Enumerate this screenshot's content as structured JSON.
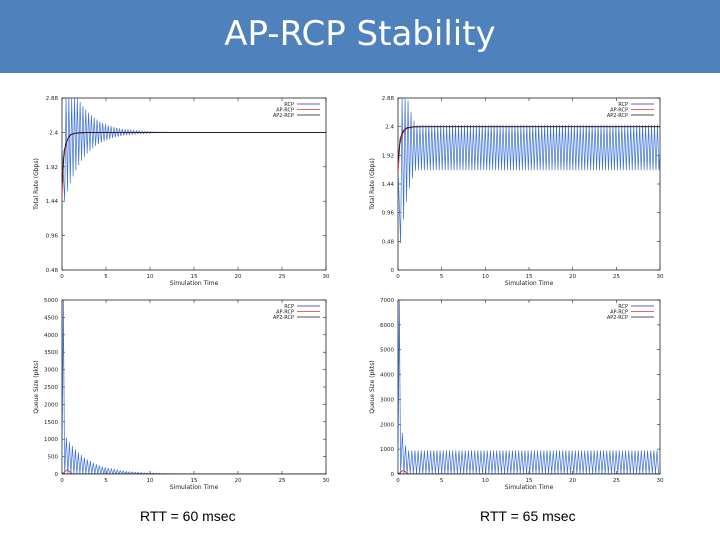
{
  "slide": {
    "title": "AP-RCP Stability"
  },
  "captions": {
    "left": "RTT = 60  msec",
    "right": "RTT = 65  msec"
  },
  "colors": {
    "title_bar": "#4f81bd",
    "rcp": "#2a2f9c",
    "ap_rcp": "#e03030",
    "ap2_rcp": "#1a1a1a",
    "oscillation": "#3a6fd8"
  },
  "chart_data": [
    {
      "id": "rate-60",
      "type": "line",
      "title": "",
      "xlabel": "Simulation Time",
      "ylabel": "Total Rate (Gbps)",
      "xlim": [
        0,
        30
      ],
      "ylim": [
        0.48,
        2.88
      ],
      "xticks": [
        "0",
        "5",
        "10",
        "15",
        "20",
        "25",
        "30"
      ],
      "yticks": [
        {
          "value": 0.48,
          "label": "0.48"
        },
        {
          "value": 0.96,
          "label": "0.96"
        },
        {
          "value": 1.44,
          "label": "1.44"
        },
        {
          "value": 1.92,
          "label": "1.92"
        },
        {
          "value": 2.4,
          "label": "2.4"
        },
        {
          "value": 2.88,
          "label": "2.88"
        }
      ],
      "legend": [
        "RCP",
        "AP-RCP",
        "AP2-RCP"
      ],
      "series": [
        {
          "name": "RCP",
          "kind": "damped-oscillation",
          "start": 0.3,
          "center": 2.4,
          "amplitude": 0.95,
          "period": 0.32,
          "decay": 2.2,
          "tail_amplitude": 0,
          "end": 30
        },
        {
          "name": "AP-RCP",
          "x": [
            0,
            0.2,
            0.5,
            0.8,
            1.2,
            2,
            30
          ],
          "y": [
            1.5,
            2.05,
            2.25,
            2.35,
            2.38,
            2.4,
            2.4
          ]
        },
        {
          "name": "AP2-RCP",
          "x": [
            0,
            0.25,
            0.6,
            1.0,
            1.6,
            3,
            30
          ],
          "y": [
            1.7,
            2.15,
            2.3,
            2.37,
            2.39,
            2.4,
            2.4
          ]
        }
      ]
    },
    {
      "id": "rate-65",
      "type": "line",
      "title": "",
      "xlabel": "Simulation Time",
      "ylabel": "Total Rate (Gbps)",
      "xlim": [
        0,
        30
      ],
      "ylim": [
        0,
        2.88
      ],
      "xticks": [
        "0",
        "5",
        "10",
        "15",
        "20",
        "25",
        "30"
      ],
      "yticks": [
        {
          "value": 0,
          "label": "0"
        },
        {
          "value": 0.48,
          "label": "0.48"
        },
        {
          "value": 0.96,
          "label": "0.96"
        },
        {
          "value": 1.44,
          "label": "1.44"
        },
        {
          "value": 1.92,
          "label": "1.92"
        },
        {
          "value": 2.4,
          "label": "2.4"
        },
        {
          "value": 2.88,
          "label": "2.88"
        }
      ],
      "legend": [
        "RCP",
        "AP-RCP",
        "AP2-RCP"
      ],
      "series": [
        {
          "name": "RCP",
          "kind": "damped-oscillation",
          "start": 0.3,
          "center": 2.05,
          "amplitude": 1.6,
          "period": 0.34,
          "decay": 1.2,
          "tail_amplitude": 0.38,
          "end": 30
        },
        {
          "name": "AP-RCP",
          "x": [
            0,
            0.2,
            0.5,
            0.9,
            1.5,
            3,
            30
          ],
          "y": [
            1.6,
            2.1,
            2.28,
            2.36,
            2.39,
            2.4,
            2.4
          ]
        },
        {
          "name": "AP2-RCP",
          "x": [
            0,
            0.25,
            0.6,
            1.0,
            1.8,
            3,
            30
          ],
          "y": [
            1.8,
            2.2,
            2.33,
            2.38,
            2.4,
            2.4,
            2.4
          ]
        }
      ]
    },
    {
      "id": "queue-60",
      "type": "line",
      "title": "",
      "xlabel": "Simulation Time",
      "ylabel": "Queue Size (pkts)",
      "xlim": [
        0,
        30
      ],
      "ylim": [
        0,
        5000
      ],
      "xticks": [
        "0",
        "5",
        "10",
        "15",
        "20",
        "25",
        "30"
      ],
      "yticks": [
        {
          "value": 0,
          "label": "0"
        },
        {
          "value": 500,
          "label": "500"
        },
        {
          "value": 1000,
          "label": "1000"
        },
        {
          "value": 1500,
          "label": "1500"
        },
        {
          "value": 2000,
          "label": "2000"
        },
        {
          "value": 2500,
          "label": "2500"
        },
        {
          "value": 3000,
          "label": "3000"
        },
        {
          "value": 3500,
          "label": "3500"
        },
        {
          "value": 4000,
          "label": "4000"
        },
        {
          "value": 4500,
          "label": "4500"
        },
        {
          "value": 5000,
          "label": "5000"
        }
      ],
      "legend": [
        "RCP",
        "AP-RCP",
        "AP2-RCP"
      ],
      "series": [
        {
          "name": "RCP",
          "kind": "spike-decay",
          "spike": 5000,
          "start": 0.5,
          "peak": 1050,
          "period": 0.34,
          "decay": 2.6,
          "tail": 0,
          "end": 30
        },
        {
          "name": "AP-RCP",
          "x": [
            0,
            0.6,
            1.2,
            30
          ],
          "y": [
            0,
            120,
            0,
            0
          ]
        },
        {
          "name": "AP2-RCP",
          "x": [
            0,
            30
          ],
          "y": [
            0,
            0
          ]
        }
      ]
    },
    {
      "id": "queue-65",
      "type": "line",
      "title": "",
      "xlabel": "Simulation Time",
      "ylabel": "Queue Size (pkts)",
      "xlim": [
        0,
        30
      ],
      "ylim": [
        0,
        7000
      ],
      "xticks": [
        "0",
        "5",
        "10",
        "15",
        "20",
        "25",
        "30"
      ],
      "yticks": [
        {
          "value": 0,
          "label": "0"
        },
        {
          "value": 1000,
          "label": "1000"
        },
        {
          "value": 2000,
          "label": "2000"
        },
        {
          "value": 3000,
          "label": "3000"
        },
        {
          "value": 4000,
          "label": "4000"
        },
        {
          "value": 5000,
          "label": "5000"
        },
        {
          "value": 6000,
          "label": "6000"
        },
        {
          "value": 7000,
          "label": "7000"
        }
      ],
      "legend": [
        "RCP",
        "AP-RCP",
        "AP2-RCP"
      ],
      "series": [
        {
          "name": "RCP",
          "kind": "spike-decay",
          "spike": 7000,
          "start": 0.5,
          "peak": 1650,
          "period": 0.36,
          "decay": 1.0,
          "tail": 950,
          "end": 30
        },
        {
          "name": "AP-RCP",
          "x": [
            0,
            0.6,
            1.2,
            30
          ],
          "y": [
            0,
            150,
            0,
            0
          ]
        },
        {
          "name": "AP2-RCP",
          "x": [
            0,
            30
          ],
          "y": [
            0,
            0
          ]
        }
      ]
    }
  ]
}
